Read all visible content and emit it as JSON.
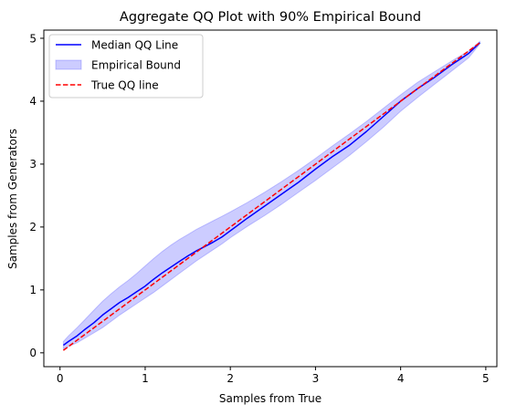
{
  "chart_data": {
    "type": "line",
    "title": "Aggregate QQ Plot with 90% Empirical Bound",
    "xlabel": "Samples from True",
    "ylabel": "Samples from Generators",
    "xlim": [
      -0.19,
      5.13
    ],
    "ylim": [
      -0.22,
      5.13
    ],
    "xticks": [
      0,
      1,
      2,
      3,
      4,
      5
    ],
    "yticks": [
      0,
      1,
      2,
      3,
      4,
      5
    ],
    "grid": false,
    "legend_position": "top-left",
    "series": [
      {
        "name": "Median QQ Line",
        "kind": "line",
        "color": "#0000ff",
        "x": [
          0.04,
          0.1,
          0.2,
          0.3,
          0.4,
          0.5,
          0.6,
          0.7,
          0.8,
          0.9,
          1.0,
          1.1,
          1.2,
          1.3,
          1.4,
          1.5,
          1.6,
          1.7,
          1.8,
          1.9,
          2.0,
          2.2,
          2.4,
          2.6,
          2.8,
          3.0,
          3.2,
          3.4,
          3.6,
          3.8,
          4.0,
          4.2,
          4.4,
          4.6,
          4.8,
          4.93
        ],
        "y": [
          0.12,
          0.18,
          0.27,
          0.38,
          0.48,
          0.6,
          0.7,
          0.8,
          0.88,
          0.97,
          1.06,
          1.17,
          1.27,
          1.36,
          1.45,
          1.54,
          1.62,
          1.69,
          1.76,
          1.84,
          1.94,
          2.14,
          2.33,
          2.52,
          2.71,
          2.92,
          3.12,
          3.3,
          3.52,
          3.76,
          4.0,
          4.2,
          4.38,
          4.58,
          4.76,
          4.93
        ]
      },
      {
        "name": "Empirical Bound",
        "kind": "band",
        "color": "#0000ff",
        "opacity": 0.2,
        "x": [
          0.04,
          0.1,
          0.2,
          0.3,
          0.4,
          0.5,
          0.6,
          0.7,
          0.8,
          0.9,
          1.0,
          1.1,
          1.2,
          1.3,
          1.4,
          1.5,
          1.6,
          1.7,
          1.8,
          1.9,
          2.0,
          2.2,
          2.4,
          2.6,
          2.8,
          3.0,
          3.2,
          3.4,
          3.6,
          3.8,
          4.0,
          4.2,
          4.4,
          4.6,
          4.8,
          4.93
        ],
        "lower": [
          0.06,
          0.1,
          0.16,
          0.24,
          0.32,
          0.4,
          0.5,
          0.6,
          0.69,
          0.78,
          0.87,
          0.96,
          1.06,
          1.16,
          1.26,
          1.36,
          1.46,
          1.55,
          1.64,
          1.73,
          1.83,
          2.01,
          2.18,
          2.36,
          2.55,
          2.74,
          2.94,
          3.14,
          3.36,
          3.59,
          3.84,
          4.06,
          4.27,
          4.48,
          4.69,
          4.91
        ],
        "upper": [
          0.18,
          0.27,
          0.4,
          0.54,
          0.68,
          0.82,
          0.94,
          1.05,
          1.15,
          1.26,
          1.38,
          1.5,
          1.61,
          1.71,
          1.8,
          1.88,
          1.96,
          2.03,
          2.1,
          2.17,
          2.24,
          2.39,
          2.55,
          2.72,
          2.9,
          3.09,
          3.29,
          3.48,
          3.68,
          3.89,
          4.1,
          4.3,
          4.47,
          4.64,
          4.8,
          4.95
        ]
      },
      {
        "name": "True QQ line",
        "kind": "dashed-line",
        "color": "#ff0000",
        "x": [
          0.04,
          4.93
        ],
        "y": [
          0.04,
          4.93
        ]
      }
    ]
  }
}
